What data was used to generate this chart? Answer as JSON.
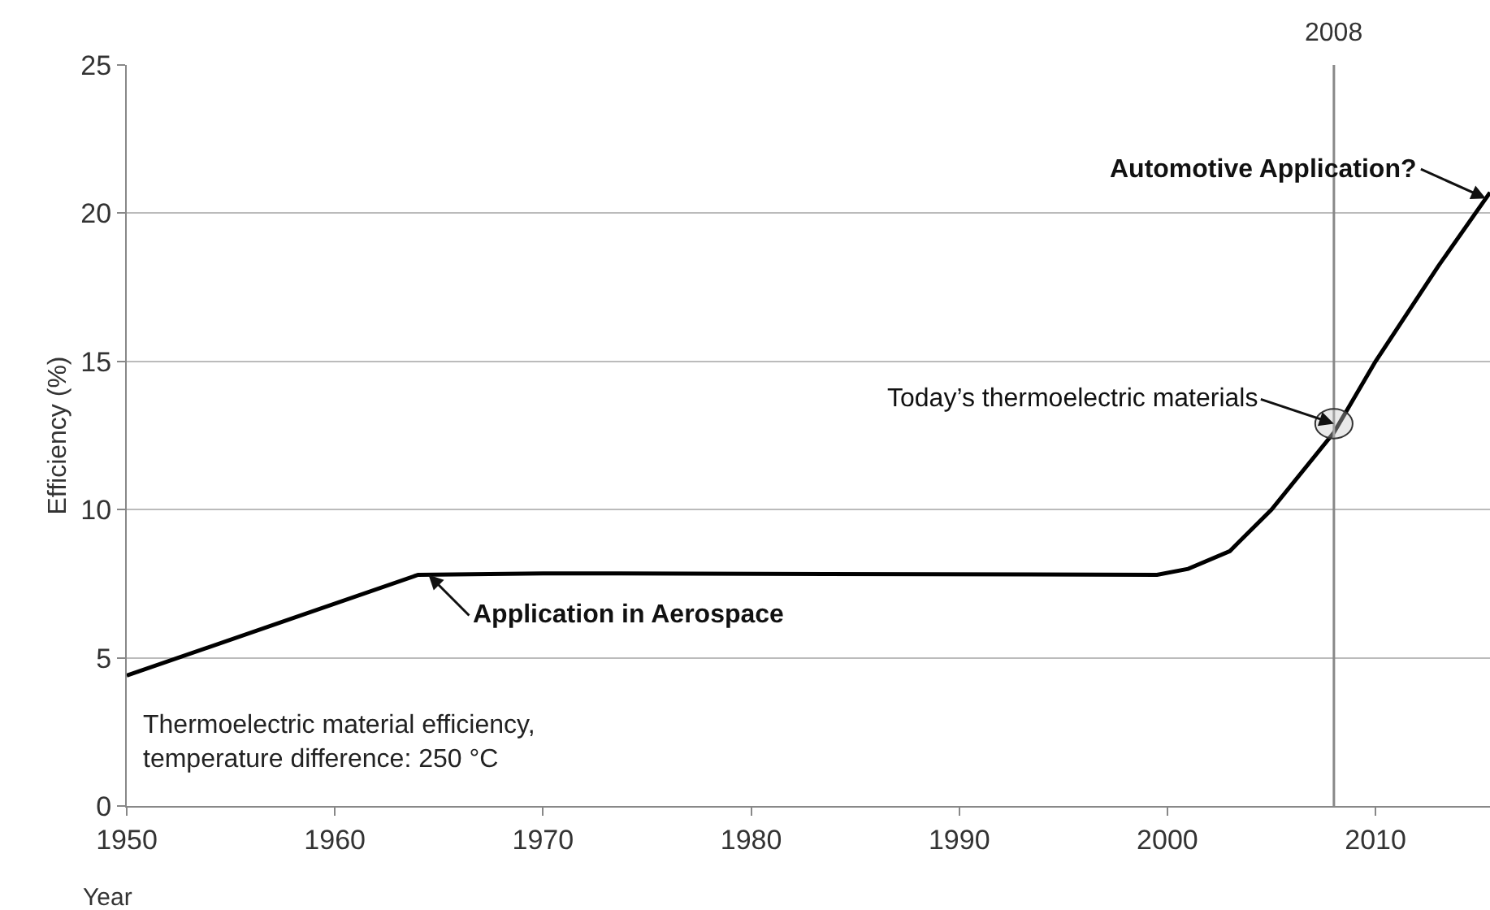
{
  "chart_data": {
    "type": "line",
    "x": [
      1950,
      1964,
      1970,
      1999.5,
      2001,
      2003,
      2005,
      2008,
      2010,
      2013,
      2015.5
    ],
    "values": [
      4.4,
      7.8,
      7.85,
      7.8,
      8.0,
      8.6,
      10,
      12.6,
      15,
      18.2,
      20.7
    ],
    "color": "#000000",
    "xlim": [
      1950,
      2015.5
    ],
    "xticks": [
      1950,
      1960,
      1970,
      1980,
      1990,
      2000,
      2010
    ],
    "ylim": [
      0,
      25
    ],
    "yticks": [
      0,
      5,
      10,
      15,
      20,
      25
    ],
    "xlabel": "Year",
    "ylabel": "Efficiency (%)",
    "grid": "y",
    "marker": "none",
    "line_style": "solid",
    "ref_lines": [
      {
        "axis": "x",
        "value": 2008,
        "label": "2008",
        "color": "#888888"
      }
    ],
    "annotations": [
      {
        "text": "Today’s thermoelectric materials",
        "x": 2008,
        "y": 12.9
      },
      {
        "text": "Automotive Application?",
        "x": 2015.3,
        "y": 20.5
      },
      {
        "text": "Application in Aerospace",
        "x": 1964.5,
        "y": 7.8
      },
      "Thermoelectric material efficiency,\ntemperature difference: 250 °C"
    ]
  }
}
